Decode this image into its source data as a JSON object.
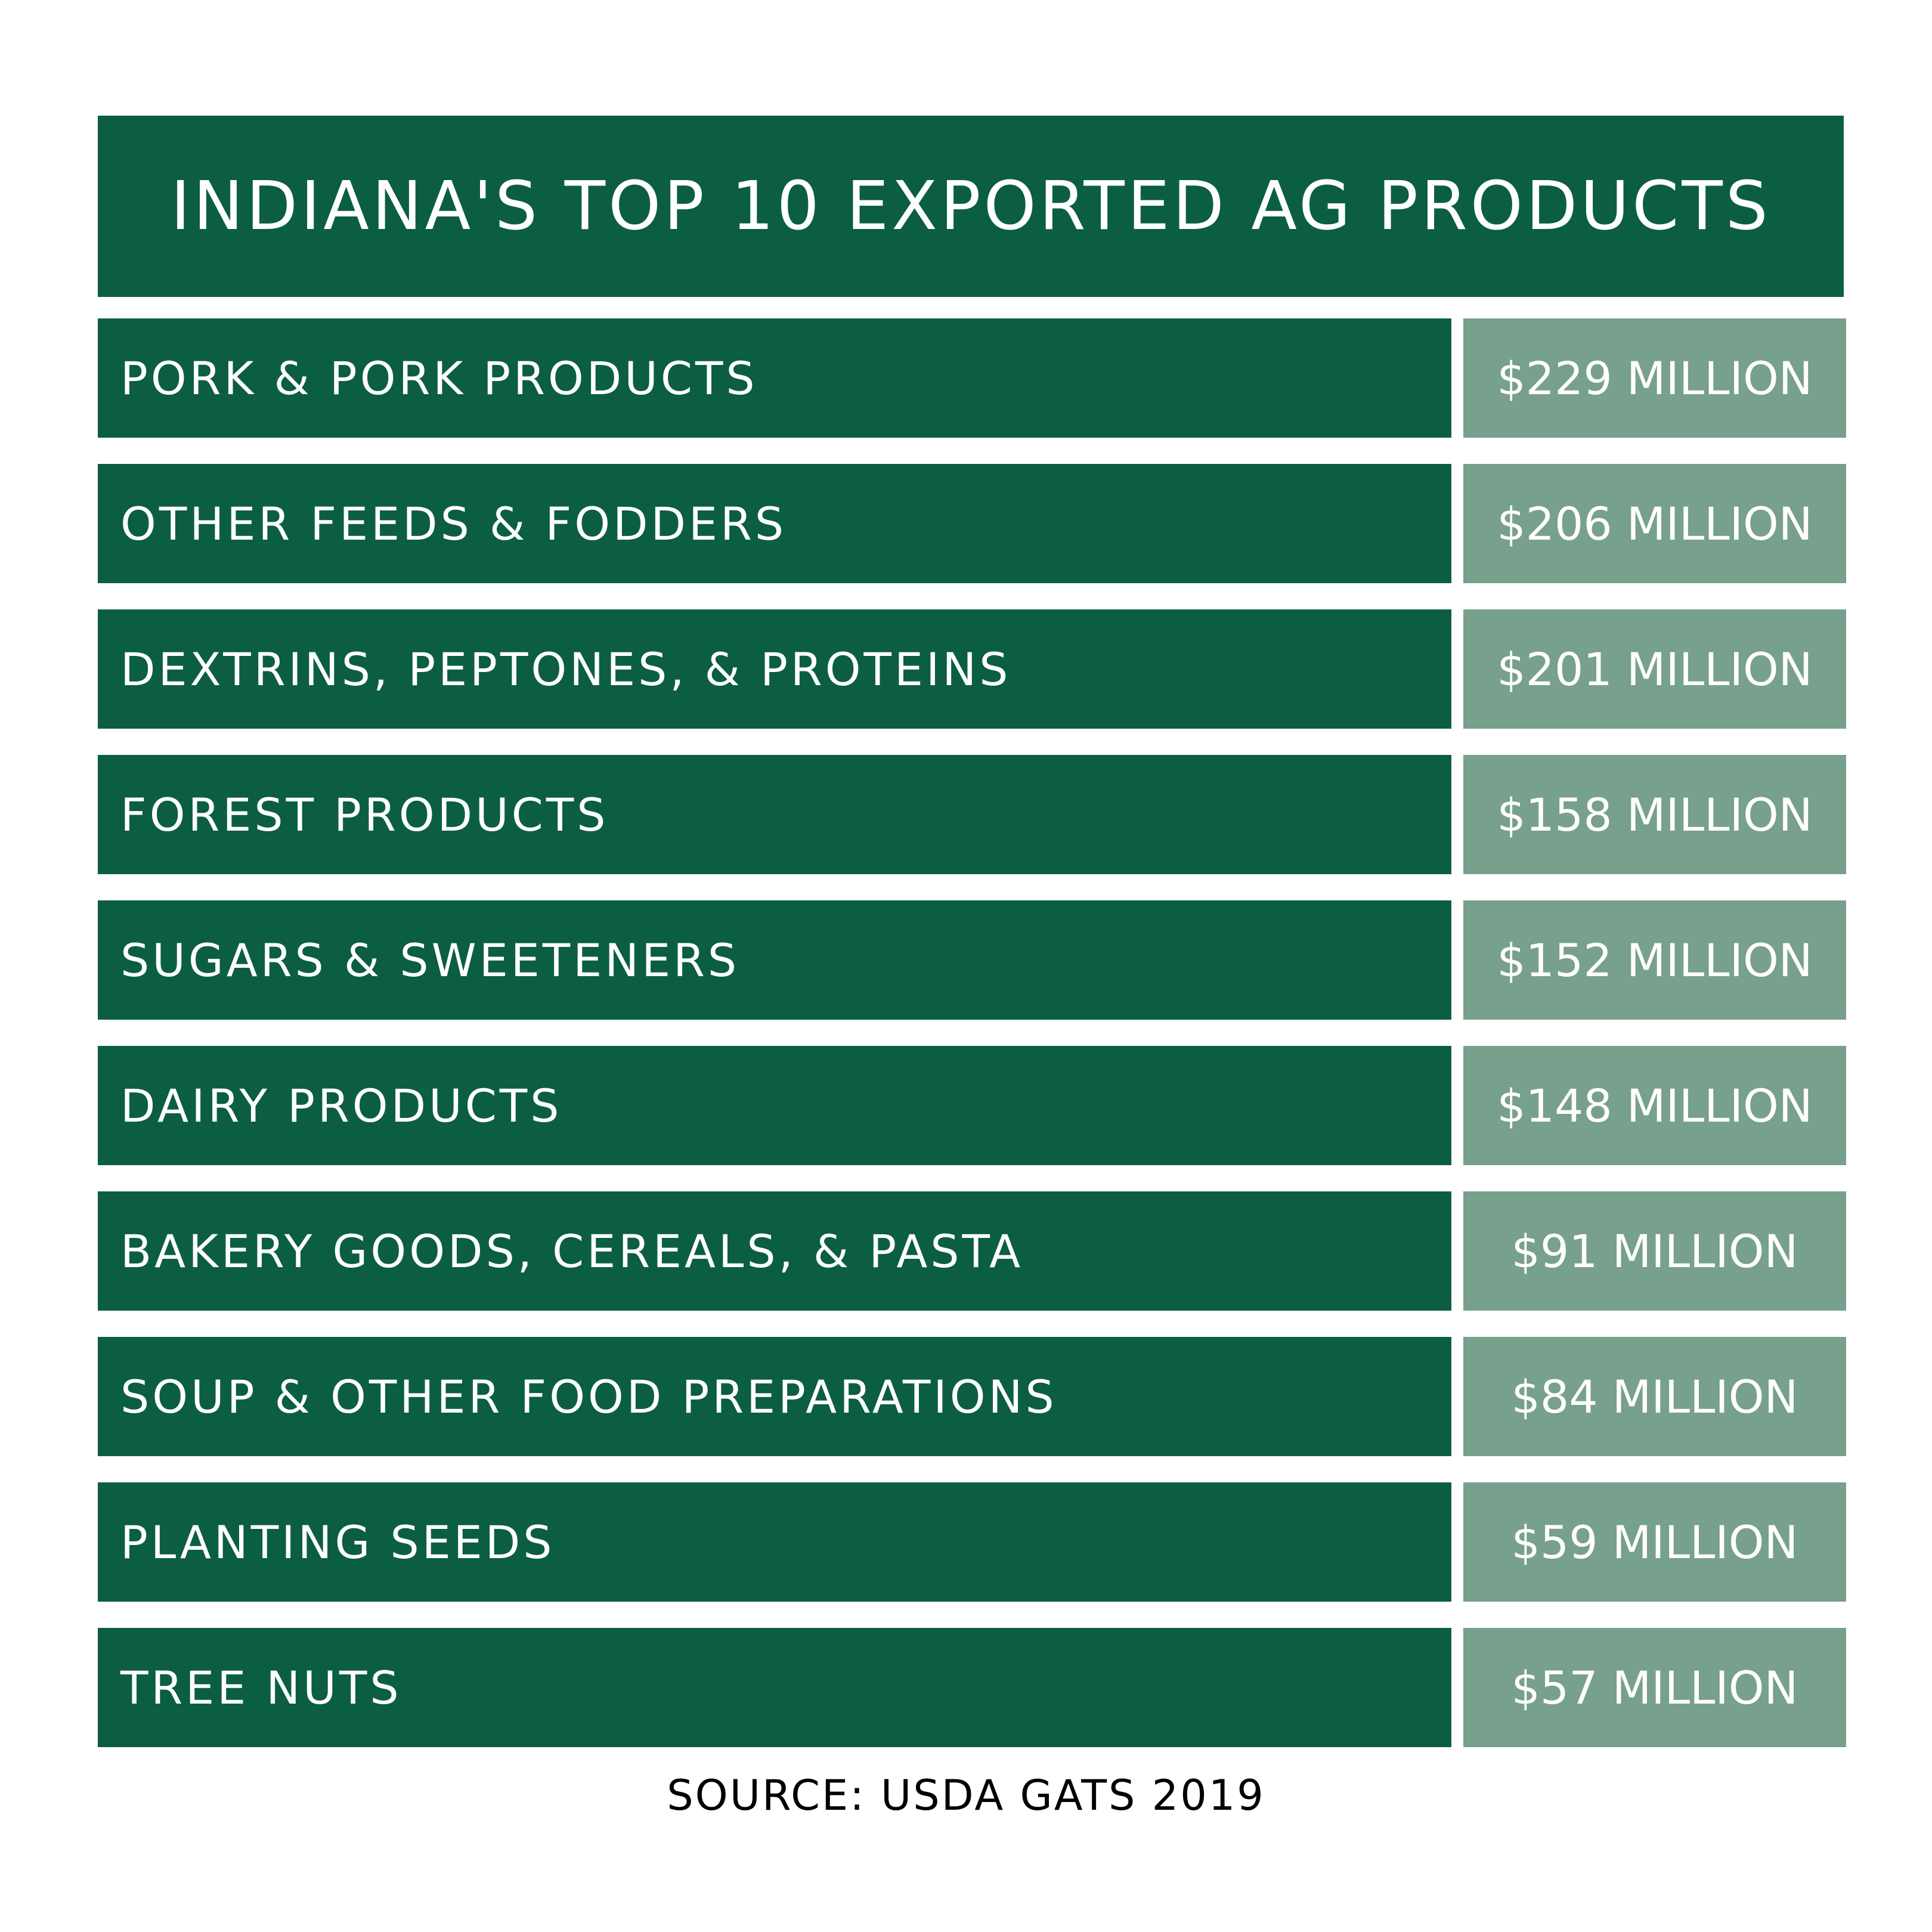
{
  "colors": {
    "title_bg": "#0b5e43",
    "label_bg": "#0b5e43",
    "value_bg": "#77a08d",
    "text": "#ffffff",
    "source_text": "#000000"
  },
  "chart_data": {
    "type": "table",
    "title": "INDIANA'S TOP 10 EXPORTED AG PRODUCTS",
    "unit": "MILLION",
    "rows": [
      {
        "label": "PORK & PORK PRODUCTS",
        "value": 229,
        "value_text": "$229 MILLION"
      },
      {
        "label": "OTHER FEEDS & FODDERS",
        "value": 206,
        "value_text": "$206 MILLION"
      },
      {
        "label": "DEXTRINS, PEPTONES, & PROTEINS",
        "value": 201,
        "value_text": "$201 MILLION"
      },
      {
        "label": "FOREST PRODUCTS",
        "value": 158,
        "value_text": "$158 MILLION"
      },
      {
        "label": "SUGARS & SWEETENERS",
        "value": 152,
        "value_text": "$152 MILLION"
      },
      {
        "label": "DAIRY PRODUCTS",
        "value": 148,
        "value_text": "$148 MILLION"
      },
      {
        "label": "BAKERY GOODS, CEREALS, & PASTA",
        "value": 91,
        "value_text": "$91 MILLION"
      },
      {
        "label": "SOUP & OTHER FOOD PREPARATIONS",
        "value": 84,
        "value_text": "$84 MILLION"
      },
      {
        "label": "PLANTING SEEDS",
        "value": 59,
        "value_text": "$59 MILLION"
      },
      {
        "label": "TREE NUTS",
        "value": 57,
        "value_text": "$57 MILLION"
      }
    ],
    "source": "SOURCE: USDA GATS 2019"
  }
}
